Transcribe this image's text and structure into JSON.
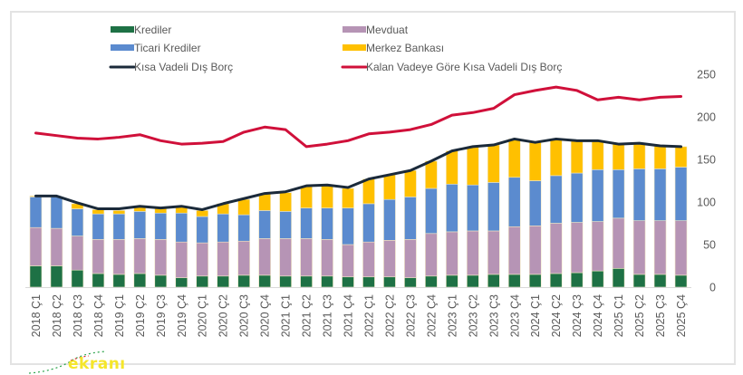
{
  "chart_data": {
    "type": "bar",
    "stacked": true,
    "title": "",
    "xlabel": "",
    "ylabel": "",
    "ylim": [
      0,
      250
    ],
    "yticks": [
      0,
      50,
      100,
      150,
      200,
      250
    ],
    "y_axis_side": "right",
    "grid": false,
    "legend_position": "top",
    "categories": [
      "2018 Ç1",
      "2018 Ç2",
      "2018 Ç3",
      "2018 Ç4",
      "2019 Ç1",
      "2019 Ç2",
      "2019 Ç3",
      "2019 Ç4",
      "2020 Ç1",
      "2020 Ç2",
      "2020 Ç3",
      "2020 Ç4",
      "2021 Ç1",
      "2021 Ç2",
      "2021 Ç3",
      "2021 Ç4",
      "2022 Ç1",
      "2022 Ç2",
      "2022 Ç3",
      "2022 Ç4",
      "2023 Ç1",
      "2023 Ç2",
      "2023 Ç3",
      "2023 Ç4",
      "2024 Ç1",
      "2024 Ç2",
      "2024 Ç3",
      "2024 Ç4",
      "2025 Ç1",
      "2025 Ç2",
      "2025 Ç3",
      "2025 Ç4"
    ],
    "series": [
      {
        "name": "Krediler",
        "kind": "bar",
        "color": "#1e7145",
        "values": [
          25,
          25,
          20,
          16,
          15,
          16,
          14,
          11,
          13,
          13,
          14,
          14,
          13,
          13,
          13,
          12,
          12,
          12,
          11,
          13,
          14,
          14,
          15,
          15,
          15,
          16,
          17,
          19,
          22,
          15,
          15,
          14
        ]
      },
      {
        "name": "Mevduat",
        "kind": "bar",
        "color": "#b694b5",
        "values": [
          45,
          44,
          40,
          40,
          41,
          41,
          42,
          42,
          39,
          40,
          40,
          43,
          44,
          44,
          43,
          38,
          41,
          43,
          45,
          50,
          51,
          52,
          51,
          56,
          57,
          59,
          59,
          58,
          59,
          63,
          63,
          64
        ]
      },
      {
        "name": "Ticari Krediler",
        "kind": "bar",
        "color": "#5b8bcf",
        "values": [
          36,
          37,
          32,
          30,
          30,
          32,
          31,
          34,
          31,
          33,
          31,
          33,
          32,
          36,
          37,
          43,
          45,
          48,
          50,
          53,
          56,
          54,
          57,
          58,
          53,
          56,
          58,
          61,
          57,
          61,
          61,
          63
        ]
      },
      {
        "name": "Merkez Bankası",
        "kind": "bar",
        "color": "#ffc000",
        "values": [
          1,
          0,
          6,
          5,
          4,
          5,
          6,
          7,
          7,
          12,
          18,
          20,
          22,
          25,
          27,
          23,
          29,
          29,
          31,
          32,
          39,
          45,
          44,
          45,
          45,
          43,
          38,
          34,
          30,
          30,
          27,
          24
        ]
      },
      {
        "name": "Kısa Vadeli Dış Borç",
        "kind": "line",
        "color": "#1b2a3a",
        "values": [
          107,
          107,
          99,
          92,
          92,
          95,
          93,
          95,
          91,
          98,
          104,
          110,
          112,
          119,
          120,
          117,
          127,
          132,
          137,
          148,
          160,
          165,
          167,
          174,
          170,
          174,
          172,
          172,
          168,
          169,
          166,
          165
        ]
      },
      {
        "name": "Kalan Vadeye Göre Kısa Vadeli Dış Borç",
        "kind": "line",
        "color": "#d0103a",
        "values": [
          181,
          178,
          175,
          174,
          176,
          179,
          172,
          168,
          169,
          171,
          182,
          188,
          185,
          165,
          168,
          172,
          180,
          182,
          185,
          191,
          202,
          205,
          210,
          226,
          231,
          235,
          231,
          220,
          223,
          220,
          223,
          224
        ]
      }
    ]
  },
  "legend": [
    {
      "label": "Krediler",
      "type": "box",
      "color": "#1e7145"
    },
    {
      "label": "Mevduat",
      "type": "box",
      "color": "#b694b5"
    },
    {
      "label": "Ticari Krediler",
      "type": "box",
      "color": "#5b8bcf"
    },
    {
      "label": "Merkez Bankası",
      "type": "box",
      "color": "#ffc000"
    },
    {
      "label": "Kısa Vadeli Dış Borç",
      "type": "line",
      "color": "#1b2a3a"
    },
    {
      "label": "Kalan Vadeye Göre Kısa Vadeli Dış Borç",
      "type": "line",
      "color": "#d0103a"
    }
  ],
  "watermark": {
    "text": "ekranı"
  }
}
